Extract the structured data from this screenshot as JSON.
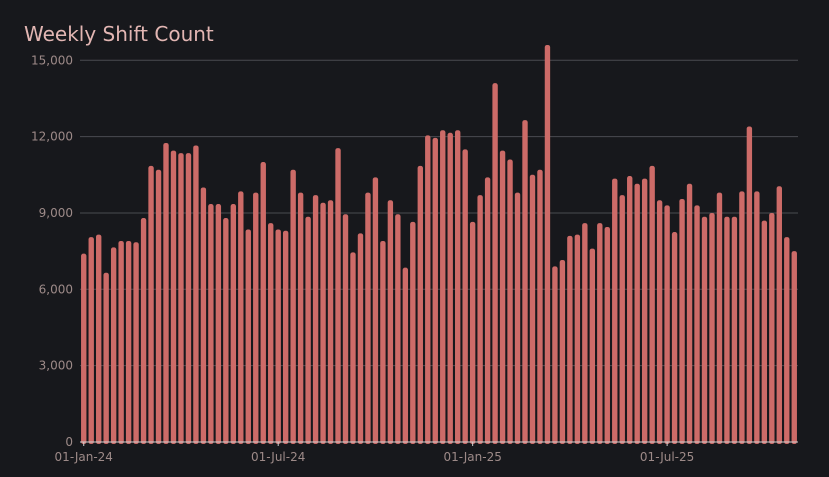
{
  "chart_data": {
    "type": "bar",
    "title": "Weekly Shift Count",
    "xlabel": "",
    "ylabel": "",
    "ylim": [
      0,
      15600
    ],
    "yticks": [
      0,
      3000,
      6000,
      9000,
      12000,
      15000
    ],
    "ytick_labels": [
      "0",
      "3,000",
      "6,000",
      "9,000",
      "12,000",
      "15,000"
    ],
    "xticks": [
      {
        "index": 0,
        "label": "01-Jan-24"
      },
      {
        "index": 26,
        "label": "01-Jul-24"
      },
      {
        "index": 52,
        "label": "01-Jan-25"
      },
      {
        "index": 78,
        "label": "01-Jul-25"
      }
    ],
    "grid": true,
    "bar_color": "#cd6b68",
    "values": [
      7400,
      8050,
      8150,
      6650,
      7650,
      7900,
      7900,
      7850,
      8800,
      10850,
      10700,
      11750,
      11450,
      11350,
      11350,
      11650,
      10000,
      9350,
      9350,
      8800,
      9350,
      9850,
      8350,
      9800,
      11000,
      8600,
      8350,
      8300,
      10700,
      9800,
      8850,
      9700,
      9400,
      9500,
      11550,
      8950,
      7450,
      8200,
      9800,
      10400,
      7900,
      9500,
      8950,
      6850,
      8650,
      10850,
      12050,
      11950,
      12250,
      12150,
      12250,
      11500,
      8650,
      9700,
      10400,
      14100,
      11450,
      11100,
      9800,
      12650,
      10500,
      10700,
      15600,
      6900,
      7150,
      8100,
      8150,
      8600,
      7600,
      8600,
      8450,
      10350,
      9700,
      10450,
      10150,
      10350,
      10850,
      9500,
      9300,
      8250,
      9550,
      10150,
      9300,
      8850,
      9000,
      9800,
      8850,
      8850,
      9850,
      12400,
      9850,
      8700,
      9000,
      10050,
      8050,
      7500
    ]
  }
}
